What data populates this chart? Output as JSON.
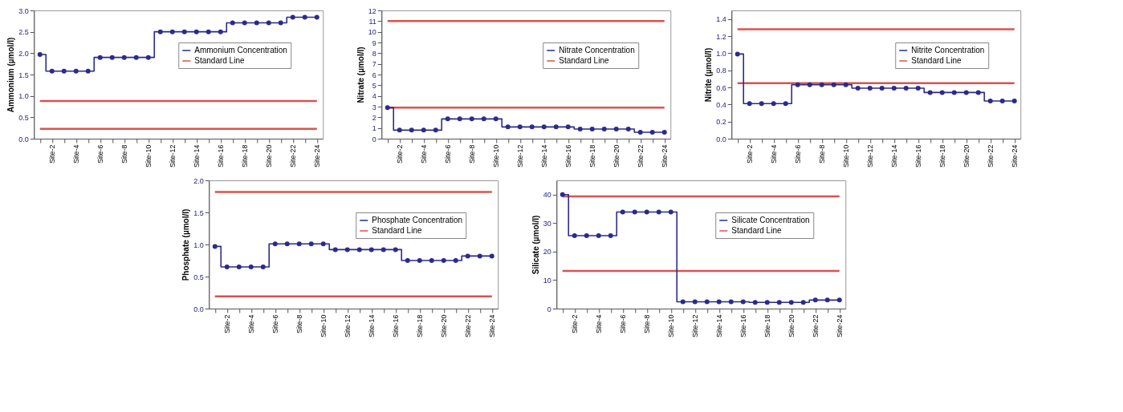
{
  "chart_data": [
    {
      "type": "step",
      "categories": [
        null,
        "Site-2",
        null,
        "Site-4",
        null,
        "Site-6",
        null,
        "Site-8",
        null,
        "Site-10",
        null,
        "Site-12",
        null,
        "Site-14",
        null,
        "Site-16",
        null,
        "Site-18",
        null,
        "Site-20",
        null,
        "Site-22",
        null,
        "Site-24"
      ],
      "ylabel": "Ammonium (µmol/l)",
      "series": [
        {
          "name": "Ammonium Concentration",
          "color": "#2b2b8c",
          "values": [
            1.97,
            1.58,
            1.58,
            1.58,
            1.58,
            1.9,
            1.9,
            1.9,
            1.9,
            1.9,
            2.5,
            2.5,
            2.5,
            2.5,
            2.5,
            2.5,
            2.71,
            2.71,
            2.71,
            2.71,
            2.71,
            2.84,
            2.84,
            2.84
          ]
        }
      ],
      "ref_lines": [
        {
          "axis": "y",
          "value": 0.88,
          "label": "Standard Line",
          "color": "#d9534f"
        },
        {
          "axis": "y",
          "value": 0.23,
          "color": "#d9534f"
        }
      ],
      "ylim": [
        0,
        3
      ],
      "yticks": [
        {
          "value": 0,
          "label": "0.0"
        },
        0.5,
        {
          "value": 1,
          "label": "1.0"
        },
        1.5,
        {
          "value": 2,
          "label": "2.0"
        },
        2.5,
        {
          "value": 3,
          "label": "3.0"
        }
      ],
      "legend": "top right",
      "marker": "circle"
    },
    {
      "type": "step",
      "categories": [
        null,
        "Site-2",
        null,
        "Site-4",
        null,
        "Site-6",
        null,
        "Site-8",
        null,
        "Site-10",
        null,
        "Site-12",
        null,
        "Site-14",
        null,
        "Site-16",
        null,
        "Site-18",
        null,
        "Site-20",
        null,
        "Site-22",
        null,
        "Site-24"
      ],
      "ylabel": "Nitrate (µmol/l)",
      "series": [
        {
          "name": "Nitrate Concentration",
          "color": "#2b2b8c",
          "values": [
            2.9,
            0.8,
            0.8,
            0.8,
            0.8,
            1.85,
            1.85,
            1.85,
            1.85,
            1.85,
            1.1,
            1.1,
            1.1,
            1.1,
            1.1,
            1.1,
            0.9,
            0.9,
            0.9,
            0.9,
            0.9,
            0.6,
            0.6,
            0.6
          ]
        }
      ],
      "ref_lines": [
        {
          "axis": "y",
          "value": 11,
          "label": "Standard Line",
          "color": "#d9534f"
        },
        {
          "axis": "y",
          "value": 2.9,
          "color": "#d9534f"
        }
      ],
      "ylim": [
        0,
        12
      ],
      "yticks": [
        0,
        1,
        2,
        3,
        4,
        5,
        6,
        7,
        8,
        9,
        10,
        11,
        12
      ],
      "legend": "top right",
      "marker": "circle"
    },
    {
      "type": "step",
      "categories": [
        null,
        "Site-2",
        null,
        "Site-4",
        null,
        "Site-6",
        null,
        "Site-8",
        null,
        "Site-10",
        null,
        "Site-12",
        null,
        "Site-14",
        null,
        "Site-16",
        null,
        "Site-18",
        null,
        "Site-20",
        null,
        "Site-22",
        null,
        "Site-24"
      ],
      "ylabel": "Nitrite (µmol/l)",
      "series": [
        {
          "name": "Nitrite Concentration",
          "color": "#2b2b8c",
          "values": [
            0.99,
            0.41,
            0.41,
            0.41,
            0.41,
            0.63,
            0.63,
            0.63,
            0.63,
            0.63,
            0.59,
            0.59,
            0.59,
            0.59,
            0.59,
            0.59,
            0.54,
            0.54,
            0.54,
            0.54,
            0.54,
            0.44,
            0.44,
            0.44
          ]
        }
      ],
      "ref_lines": [
        {
          "axis": "y",
          "value": 1.28,
          "label": "Standard Line",
          "color": "#d9534f"
        },
        {
          "axis": "y",
          "value": 0.65,
          "color": "#d9534f"
        }
      ],
      "ylim": [
        0,
        1.5
      ],
      "yticks": [
        {
          "value": 0,
          "label": "0.0"
        },
        0.2,
        0.4,
        0.6,
        0.8,
        {
          "value": 1,
          "label": "1.0"
        },
        1.2,
        1.4
      ],
      "legend": "top right",
      "marker": "circle"
    },
    {
      "type": "step",
      "categories": [
        null,
        "Site-2",
        null,
        "Site-4",
        null,
        "Site-6",
        null,
        "Site-8",
        null,
        "Site-10",
        null,
        "Site-12",
        null,
        "Site-14",
        null,
        "Site-16",
        null,
        "Site-18",
        null,
        "Site-20",
        null,
        "Site-22",
        null,
        "Site-24"
      ],
      "ylabel": "Phosphate (µmol/l)",
      "series": [
        {
          "name": "Phosphate Concentration",
          "color": "#2b2b8c",
          "values": [
            0.97,
            0.65,
            0.65,
            0.65,
            0.65,
            1.01,
            1.01,
            1.01,
            1.01,
            1.01,
            0.92,
            0.92,
            0.92,
            0.92,
            0.92,
            0.92,
            0.75,
            0.75,
            0.75,
            0.75,
            0.75,
            0.82,
            0.82,
            0.82
          ]
        }
      ],
      "ref_lines": [
        {
          "axis": "y",
          "value": 1.82,
          "label": "Standard Line",
          "color": "#d9534f"
        },
        {
          "axis": "y",
          "value": 0.19,
          "color": "#d9534f"
        }
      ],
      "ylim": [
        0,
        2
      ],
      "yticks": [
        {
          "value": 0,
          "label": "0.0"
        },
        0.5,
        {
          "value": 1,
          "label": "1.0"
        },
        1.5,
        {
          "value": 2,
          "label": "2.0"
        }
      ],
      "legend": "top right",
      "marker": "circle"
    },
    {
      "type": "step",
      "categories": [
        null,
        "Site-2",
        null,
        "Site-4",
        null,
        "Site-6",
        null,
        "Site-8",
        null,
        "Site-10",
        null,
        "Site-12",
        null,
        "Site-14",
        null,
        "Site-16",
        null,
        "Site-18",
        null,
        "Site-20",
        null,
        "Site-22",
        null,
        "Site-24"
      ],
      "ylabel": "Silicate (µmol/l)",
      "series": [
        {
          "name": "Silicate Concentration",
          "color": "#2b2b8c",
          "values": [
            40,
            25.6,
            25.6,
            25.6,
            25.6,
            33.9,
            33.9,
            33.9,
            33.9,
            33.9,
            2.4,
            2.4,
            2.4,
            2.4,
            2.4,
            2.4,
            2.2,
            2.2,
            2.2,
            2.2,
            2.2,
            3.0,
            3.0,
            3.0
          ]
        }
      ],
      "ref_lines": [
        {
          "axis": "y",
          "value": 39.4,
          "label": "Standard Line",
          "color": "#d9534f"
        },
        {
          "axis": "y",
          "value": 13.2,
          "color": "#d9534f"
        }
      ],
      "ylim": [
        0,
        45
      ],
      "yticks": [
        0,
        10,
        20,
        30,
        40
      ],
      "legend": "top right",
      "marker": "circle"
    }
  ]
}
